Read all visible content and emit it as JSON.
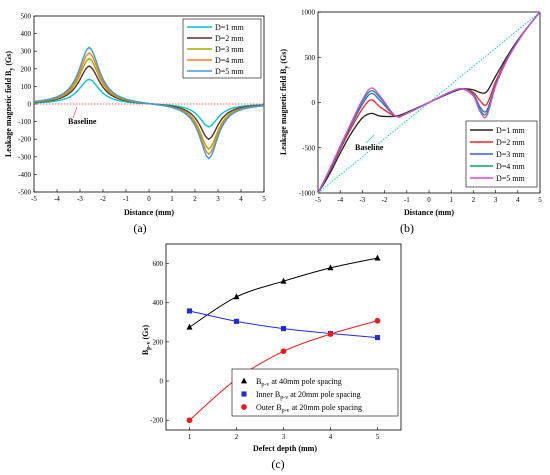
{
  "chart_data": [
    {
      "id": "a",
      "panel_label": "(a)",
      "type": "line",
      "xlabel": "Distance (mm)",
      "ylabel": "Leakage magnetic field B",
      "ylabel_sub": "y",
      "ylabel_unit": " (Gs)",
      "xlim": [
        -5,
        5
      ],
      "ylim": [
        -500,
        500
      ],
      "xticks": [
        -5,
        -4,
        -3,
        -2,
        -1,
        0,
        1,
        2,
        3,
        4,
        5
      ],
      "yticks": [
        -500,
        -400,
        -300,
        -200,
        -100,
        0,
        100,
        200,
        300,
        400,
        500
      ],
      "legend_position": "top-right",
      "annotation": "Baseline",
      "baseline": {
        "x": [
          -5,
          5
        ],
        "y": [
          0,
          0
        ],
        "color": "#ff3333"
      },
      "peaks": {
        "x_pos": -2.6,
        "x_neg": 2.6
      },
      "series": [
        {
          "name": "D=1 mm",
          "color": "#00c5cd",
          "peak": 140,
          "trough": -130
        },
        {
          "name": "D=2 mm",
          "color": "#5a2e2e",
          "peak": 215,
          "trough": -200
        },
        {
          "name": "D=3 mm",
          "color": "#a8a800",
          "peak": 258,
          "trough": -255
        },
        {
          "name": "D=4 mm",
          "color": "#ff7f1e",
          "peak": 290,
          "trough": -285
        },
        {
          "name": "D=5 mm",
          "color": "#3c9cd8",
          "peak": 322,
          "trough": -310
        }
      ]
    },
    {
      "id": "b",
      "panel_label": "(b)",
      "type": "line",
      "xlabel": "Distance (mm)",
      "ylabel": "Leakage magnetic field B",
      "ylabel_sub": "y",
      "ylabel_unit": " (Gs)",
      "xlim": [
        -5,
        5
      ],
      "ylim": [
        -1000,
        1000
      ],
      "xticks": [
        -5,
        -4,
        -3,
        -2,
        -1,
        0,
        1,
        2,
        3,
        4,
        5
      ],
      "yticks": [
        -1000,
        -500,
        0,
        500,
        1000
      ],
      "legend_position": "bottom-right",
      "annotation": "Baseline",
      "baseline": {
        "x": [
          -5,
          5
        ],
        "y": [
          -1000,
          1000
        ],
        "color": "#00c5cd"
      },
      "series": [
        {
          "name": "D=1 mm",
          "color": "#222222",
          "x": [
            -5,
            -4.5,
            -4,
            -3.5,
            -3,
            -2.6,
            -2.2,
            -1.5,
            -1,
            0,
            1,
            1.5,
            2,
            2.3,
            2.6,
            3,
            3.5,
            4,
            4.5,
            5
          ],
          "y": [
            -1000,
            -800,
            -560,
            -340,
            -170,
            -120,
            -150,
            -150,
            -110,
            0,
            110,
            150,
            140,
            110,
            120,
            290,
            500,
            690,
            850,
            1000
          ]
        },
        {
          "name": "D=2 mm",
          "color": "#ff2222",
          "x": [
            -5,
            -4.5,
            -4,
            -3.5,
            -3,
            -2.6,
            -2.2,
            -1.5,
            -1,
            0,
            1,
            1.5,
            2,
            2.3,
            2.6,
            3,
            3.5,
            4,
            4.5,
            5
          ],
          "y": [
            -1000,
            -770,
            -520,
            -280,
            -70,
            30,
            -50,
            -150,
            -120,
            0,
            120,
            150,
            110,
            20,
            -20,
            230,
            480,
            680,
            850,
            1000
          ]
        },
        {
          "name": "D=3 mm",
          "color": "#3b5bd9",
          "x": [
            -5,
            -4.5,
            -4,
            -3.5,
            -3,
            -2.6,
            -2.2,
            -1.5,
            -1,
            0,
            1,
            1.5,
            2,
            2.3,
            2.6,
            3,
            3.5,
            4,
            4.5,
            5
          ],
          "y": [
            -1000,
            -760,
            -500,
            -250,
            -20,
            100,
            20,
            -150,
            -120,
            0,
            120,
            150,
            90,
            -50,
            -90,
            200,
            470,
            680,
            850,
            1000
          ]
        },
        {
          "name": "D=4 mm",
          "color": "#0fa35a",
          "x": [
            -5,
            -4.5,
            -4,
            -3.5,
            -3,
            -2.6,
            -2.2,
            -1.5,
            -1,
            0,
            1,
            1.5,
            2,
            2.3,
            2.6,
            3,
            3.5,
            4,
            4.5,
            5
          ],
          "y": [
            -1000,
            -755,
            -490,
            -235,
            10,
            130,
            50,
            -150,
            -120,
            0,
            120,
            150,
            80,
            -80,
            -120,
            190,
            465,
            675,
            850,
            1000
          ]
        },
        {
          "name": "D=5 mm",
          "color": "#d24be0",
          "x": [
            -5,
            -4.5,
            -4,
            -3.5,
            -3,
            -2.6,
            -2.2,
            -1.5,
            -1,
            0,
            1,
            1.5,
            2,
            2.3,
            2.6,
            3,
            3.5,
            4,
            4.5,
            5
          ],
          "y": [
            -1000,
            -750,
            -480,
            -220,
            30,
            160,
            70,
            -150,
            -120,
            0,
            120,
            150,
            70,
            -100,
            -150,
            180,
            460,
            670,
            850,
            1000
          ]
        }
      ]
    },
    {
      "id": "c",
      "panel_label": "(c)",
      "type": "line",
      "xlabel": "Defect depth (mm)",
      "ylabel": "B",
      "ylabel_sub": "p-v",
      "ylabel_unit": " (Gs)",
      "xlim": [
        0.5,
        5.5
      ],
      "ylim": [
        -250,
        700
      ],
      "xticks": [
        1,
        2,
        3,
        4,
        5
      ],
      "yticks": [
        -200,
        0,
        200,
        400,
        600
      ],
      "legend_position": "bottom-right",
      "x": [
        1,
        2,
        3,
        4,
        5
      ],
      "series": [
        {
          "name": "B_p-v at 40mm pole spacing",
          "legend_main": "B",
          "legend_sub": "p-v",
          "legend_rest": " at 40mm pole spacing",
          "color": "#000000",
          "marker": "triangle",
          "values": [
            275,
            430,
            510,
            578,
            628
          ]
        },
        {
          "name": "Inner B_p-v at 20mm pole spacing",
          "legend_main": "Inner B",
          "legend_sub": "p-v",
          "legend_rest": " at 20mm pole spacing",
          "color": "#1f2bd8",
          "marker": "square",
          "values": [
            358,
            305,
            268,
            243,
            222
          ]
        },
        {
          "name": "Outer B_p-v at 20mm pole spacing",
          "legend_main": "Outer B",
          "legend_sub": "p-v",
          "legend_rest": " at 20mm pole spacing",
          "color": "#e81a1a",
          "marker": "circle",
          "values": [
            -200,
            10,
            152,
            240,
            308
          ]
        }
      ]
    }
  ]
}
